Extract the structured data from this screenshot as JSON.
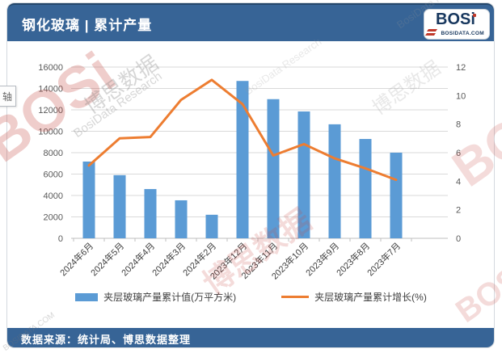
{
  "header": {
    "title": "钢化玻璃 | 累计产量",
    "logo": {
      "name": "BOSi",
      "domain": "BOSIDATA.COM"
    }
  },
  "footer": {
    "source": "数据来源：统计局、博思数据整理"
  },
  "floating_axis_label": "轴",
  "colors": {
    "header_blue": "#376496",
    "bar_blue": "#5B9BD5",
    "line_orange": "#ED7D31",
    "gridline": "#D9D9D9",
    "tick_text": "#595959"
  },
  "watermarks": {
    "logo": "BOSi",
    "cn": "博思数据",
    "en": "BosiData Research",
    "domain": "BOSIDATA.COM"
  },
  "chart_data": {
    "type": "bar",
    "subtype": "bar+line combo, dual axis",
    "categories": [
      "2024年6月",
      "2024年5月",
      "2024年4月",
      "2024年3月",
      "2024年2月",
      "2023年12月",
      "2023年11月",
      "2023年10月",
      "2023年9月",
      "2023年8月",
      "2023年7月"
    ],
    "series": [
      {
        "name": "夹层玻璃产量累计值(万平方米)",
        "type": "bar",
        "axis": "left",
        "color": "#5B9BD5",
        "values": [
          7170,
          5900,
          4600,
          3550,
          2200,
          14700,
          13000,
          11850,
          10650,
          9280,
          8000
        ]
      },
      {
        "name": "夹层玻璃产量累计增长(%)",
        "type": "line",
        "axis": "right",
        "color": "#ED7D31",
        "values": [
          5.1,
          7.0,
          7.1,
          9.7,
          11.1,
          9.4,
          5.8,
          6.6,
          5.6,
          4.9,
          4.1
        ]
      }
    ],
    "left_axis": {
      "min": 0,
      "max": 16000,
      "ticks": [
        0,
        2000,
        4000,
        6000,
        8000,
        10000,
        12000,
        14000,
        16000
      ]
    },
    "right_axis": {
      "min": 0,
      "max": 12,
      "ticks": [
        0,
        2,
        4,
        6,
        8,
        10,
        12
      ]
    },
    "grid": true,
    "legend_position": "bottom",
    "x_labels_rotated_deg": -45
  }
}
